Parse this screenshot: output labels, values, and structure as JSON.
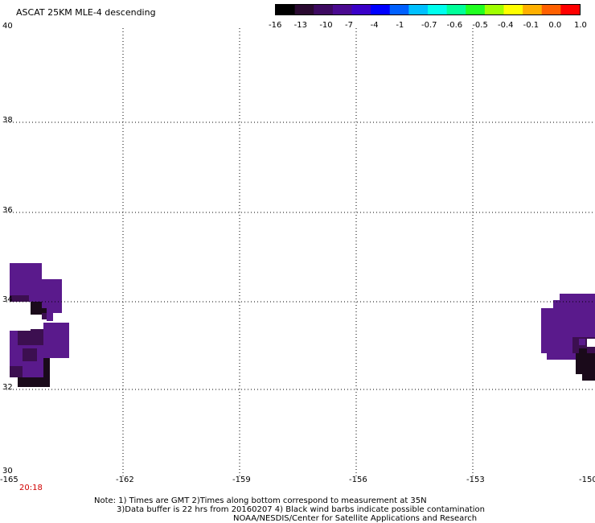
{
  "title": "ASCAT 25KM MLE-4 descending",
  "colorbar": {
    "labels": [
      "-16",
      "-13",
      "-10",
      "-7",
      "-4",
      "-1",
      "-0.7",
      "-0.6",
      "-0.5",
      "-0.4",
      "-0.1",
      "0.0",
      "1.0"
    ],
    "colors": [
      "#000000",
      "#2a0a30",
      "#3d0a60",
      "#4a0a90",
      "#3a00c8",
      "#0000ff",
      "#0060ff",
      "#00c0ff",
      "#00ffee",
      "#00ff99",
      "#20ff20",
      "#a0ff00",
      "#ffff00",
      "#ffb000",
      "#ff6000",
      "#ff0000"
    ]
  },
  "axes": {
    "lat_labels": [
      "40",
      "38",
      "36",
      "34",
      "32",
      "30"
    ],
    "lon_labels": [
      "-165",
      "-162",
      "-159",
      "-156",
      "-153",
      "-150"
    ]
  },
  "time_label": "20:18",
  "notes": {
    "line1": "Note: 1) Times are GMT 2)Times along bottom correspond to measurement at 35N",
    "line2": "3)Data buffer is 22 hrs from 20160207 4) Black wind barbs indicate possible contamination",
    "line3": "NOAA/NESDIS/Center for Satellite Applications and Research"
  },
  "colors": {
    "purple": "#5a1a8c",
    "dark_purple": "#3c0f50",
    "near_black": "#1a0a1a",
    "grid": "#000000"
  }
}
